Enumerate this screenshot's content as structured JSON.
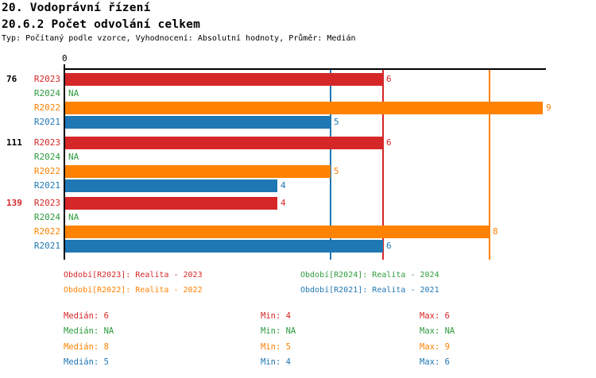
{
  "header": {
    "title": "20. Vodoprávní řízení",
    "subtitle": "20.6.2 Počet odvolání celkem",
    "meta": "Typ: Počítaný podle vzorce, Vyhodnocení: Absolutní hodnoty, Průměr: Medián"
  },
  "colors": {
    "R2023": "#d62728",
    "R2024": "#2e9b3e",
    "R2022": "#ff8200",
    "R2021": "#1f77b4",
    "axis": "#000000",
    "group_label_default": "#000000",
    "group_label_highlight": "#d62728"
  },
  "chart_data": {
    "type": "bar",
    "orientation": "horizontal",
    "title": "20.6.2 Počet odvolání celkem",
    "x_axis": {
      "position": "top",
      "ticks": [
        0
      ],
      "tick_labels": [
        "0"
      ],
      "range": [
        0,
        9.1
      ],
      "grid": false
    },
    "series_order": [
      "R2023",
      "R2024",
      "R2022",
      "R2021"
    ],
    "groups": [
      {
        "label": "76",
        "highlighted": false,
        "values": [
          6,
          null,
          9,
          5
        ],
        "value_labels": [
          "6",
          "NA",
          "9",
          "5"
        ]
      },
      {
        "label": "111",
        "highlighted": false,
        "values": [
          6,
          null,
          5,
          4
        ],
        "value_labels": [
          "6",
          "NA",
          "5",
          "4"
        ]
      },
      {
        "label": "139",
        "highlighted": true,
        "values": [
          4,
          null,
          8,
          6
        ],
        "value_labels": [
          "4",
          "NA",
          "8",
          "6"
        ]
      }
    ],
    "reference_lines": [
      {
        "series": "R2023",
        "value": 6,
        "meaning": "Medián R2023"
      },
      {
        "series": "R2022",
        "value": 8,
        "meaning": "Medián R2022"
      },
      {
        "series": "R2021",
        "value": 5,
        "meaning": "Medián R2021"
      }
    ],
    "legend_position": "bottom"
  },
  "legend": {
    "items": [
      {
        "series": "R2023",
        "label": "Období[R2023]: Realita - 2023"
      },
      {
        "series": "R2024",
        "label": "Období[R2024]: Realita - 2024"
      },
      {
        "series": "R2022",
        "label": "Období[R2022]: Realita - 2022"
      },
      {
        "series": "R2021",
        "label": "Období[R2021]: Realita - 2021"
      }
    ]
  },
  "stats": {
    "rows": [
      {
        "series": "R2023",
        "median": "Medián: 6",
        "min": "Min: 4",
        "max": "Max: 6"
      },
      {
        "series": "R2024",
        "median": "Medián: NA",
        "min": "Min: NA",
        "max": "Max: NA"
      },
      {
        "series": "R2022",
        "median": "Medián: 8",
        "min": "Min: 5",
        "max": "Max: 9"
      },
      {
        "series": "R2021",
        "median": "Medián: 5",
        "min": "Min: 4",
        "max": "Max: 6"
      }
    ]
  }
}
